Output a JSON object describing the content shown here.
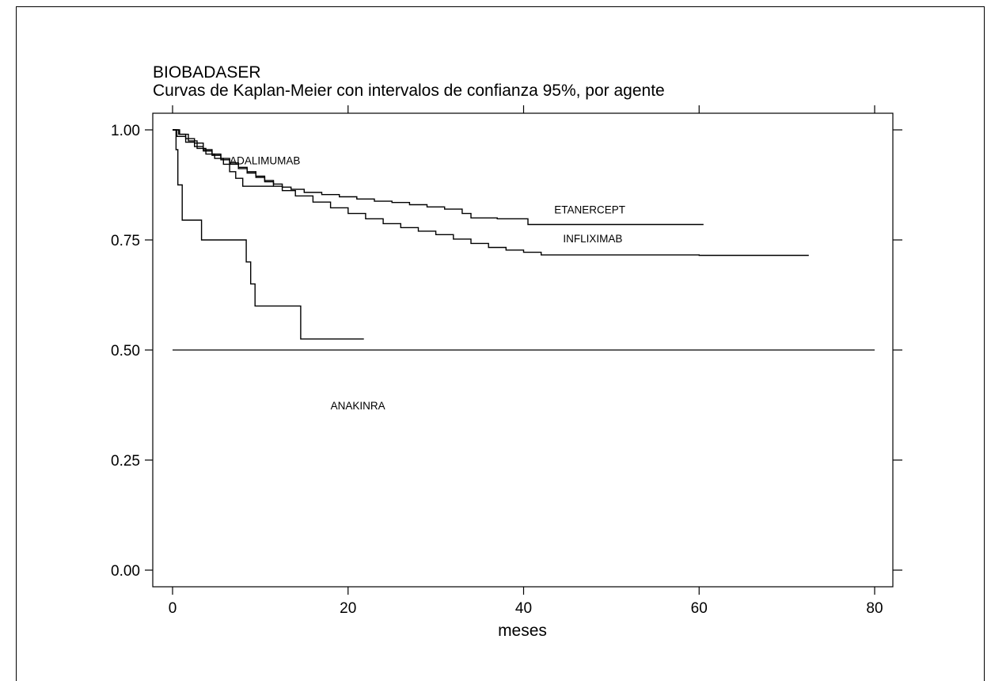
{
  "chart_data": {
    "type": "line",
    "title": "BIOBADASER",
    "subtitle": "Curvas de Kaplan-Meier con intervalos de confianza 95%, por agente",
    "xlabel": "meses",
    "ylabel": "",
    "xlim": [
      0,
      80
    ],
    "ylim": [
      0,
      1
    ],
    "x_ticks": [
      0,
      20,
      40,
      60,
      80
    ],
    "x_tick_labels": [
      "0",
      "20",
      "40",
      "60",
      "80"
    ],
    "y_ticks": [
      0,
      0.25,
      0.5,
      0.75,
      1
    ],
    "y_tick_labels": [
      "0.00",
      "0.25",
      "0.50",
      "0.75",
      "1.00"
    ],
    "grid": false,
    "reference_line": {
      "y": 0.5,
      "x_from": 0,
      "x_to": 80
    },
    "series": [
      {
        "name": "ETANERCEPT",
        "label_at": [
          43.5,
          0.81
        ],
        "points": [
          [
            0,
            1.0
          ],
          [
            0.7,
            0.99
          ],
          [
            1.5,
            0.98
          ],
          [
            2.5,
            0.97
          ],
          [
            3.5,
            0.955
          ],
          [
            4.5,
            0.945
          ],
          [
            5.5,
            0.935
          ],
          [
            6.5,
            0.925
          ],
          [
            7.5,
            0.915
          ],
          [
            8.5,
            0.905
          ],
          [
            9.5,
            0.895
          ],
          [
            10.5,
            0.885
          ],
          [
            11.5,
            0.877
          ],
          [
            12.5,
            0.87
          ],
          [
            13.5,
            0.865
          ],
          [
            15,
            0.858
          ],
          [
            17,
            0.853
          ],
          [
            19,
            0.848
          ],
          [
            21,
            0.843
          ],
          [
            23,
            0.838
          ],
          [
            25,
            0.835
          ],
          [
            27,
            0.83
          ],
          [
            29,
            0.825
          ],
          [
            31,
            0.82
          ],
          [
            33,
            0.81
          ],
          [
            34,
            0.8
          ],
          [
            37,
            0.798
          ],
          [
            40.5,
            0.785
          ],
          [
            60.5,
            0.785
          ]
        ]
      },
      {
        "name": "INFLIXIMAB",
        "label_at": [
          44.5,
          0.745
        ],
        "points": [
          [
            0,
            1.0
          ],
          [
            0.5,
            0.985
          ],
          [
            1.5,
            0.972
          ],
          [
            2.5,
            0.962
          ],
          [
            3.5,
            0.952
          ],
          [
            4.5,
            0.942
          ],
          [
            5.5,
            0.932
          ],
          [
            6.5,
            0.922
          ],
          [
            7.5,
            0.912
          ],
          [
            8.5,
            0.902
          ],
          [
            9.5,
            0.892
          ],
          [
            10.5,
            0.882
          ],
          [
            11.5,
            0.872
          ],
          [
            12.5,
            0.862
          ],
          [
            14,
            0.85
          ],
          [
            16,
            0.836
          ],
          [
            18,
            0.823
          ],
          [
            20,
            0.81
          ],
          [
            22,
            0.798
          ],
          [
            24,
            0.787
          ],
          [
            26,
            0.778
          ],
          [
            28,
            0.77
          ],
          [
            30,
            0.762
          ],
          [
            32,
            0.752
          ],
          [
            34,
            0.742
          ],
          [
            36,
            0.733
          ],
          [
            38,
            0.727
          ],
          [
            40,
            0.722
          ],
          [
            42,
            0.716
          ],
          [
            50,
            0.716
          ],
          [
            60,
            0.715
          ],
          [
            72.5,
            0.715
          ]
        ]
      },
      {
        "name": "ADALIMUMAB",
        "label_at": [
          6.5,
          0.922
        ],
        "points": [
          [
            0,
            1.0
          ],
          [
            0.8,
            0.99
          ],
          [
            1.8,
            0.975
          ],
          [
            2.8,
            0.958
          ],
          [
            3.8,
            0.945
          ],
          [
            4.8,
            0.935
          ],
          [
            5.8,
            0.922
          ],
          [
            6.5,
            0.905
          ],
          [
            7.2,
            0.89
          ],
          [
            8,
            0.872
          ],
          [
            11.5,
            0.872
          ]
        ]
      },
      {
        "name": "ANAKINRA",
        "label_at": [
          18,
          0.365
        ],
        "points": [
          [
            0,
            1.0
          ],
          [
            0.4,
            0.955
          ],
          [
            0.6,
            0.875
          ],
          [
            1.1,
            0.795
          ],
          [
            3.3,
            0.75
          ],
          [
            8.4,
            0.7
          ],
          [
            8.9,
            0.65
          ],
          [
            9.4,
            0.6
          ],
          [
            14.6,
            0.525
          ],
          [
            21.8,
            0.525
          ]
        ]
      }
    ]
  }
}
